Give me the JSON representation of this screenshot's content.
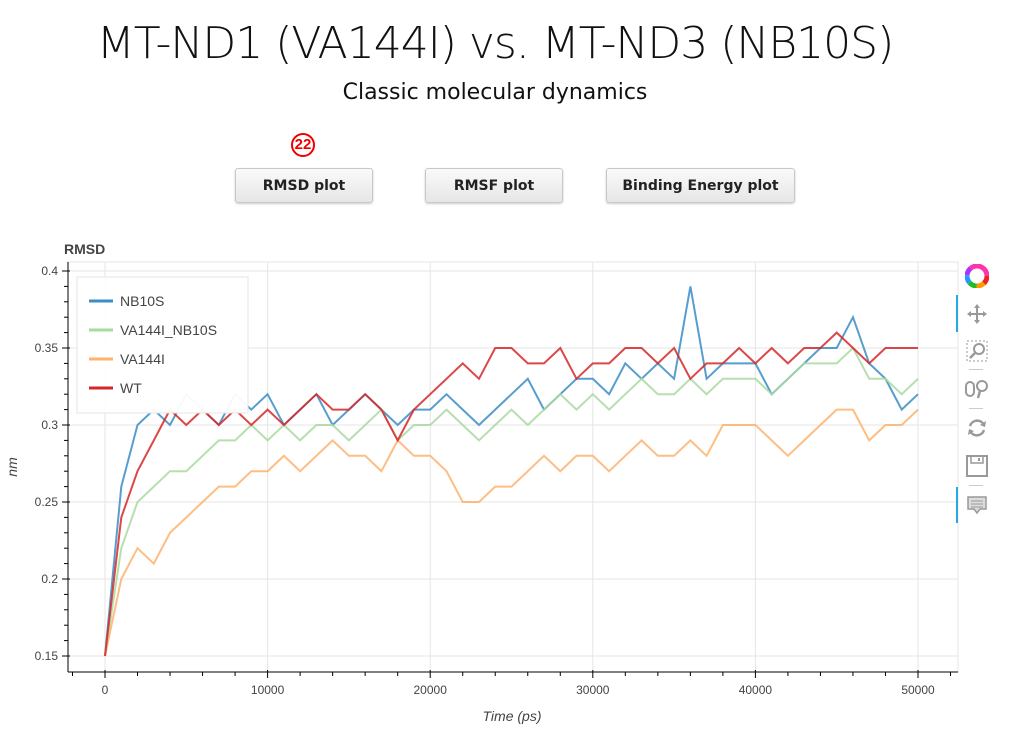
{
  "header": {
    "title": "MT-ND1 (VA144I) vs. MT-ND3 (NB10S)",
    "subtitle": "Classic molecular dynamics",
    "badge": "22"
  },
  "buttons": [
    {
      "label": "RMSD plot"
    },
    {
      "label": "RMSF plot"
    },
    {
      "label": "Binding Energy plot"
    }
  ],
  "toolbar": {
    "tools": [
      "bokeh-logo-icon",
      "pan-icon",
      "box-zoom-icon",
      "wheel-zoom-icon",
      "reset-icon",
      "save-icon",
      "hover-icon"
    ]
  },
  "chart_data": {
    "type": "line",
    "title": "RMSD",
    "xlabel": "Time (ps)",
    "ylabel": "nm",
    "xlim": [
      -2000,
      52500
    ],
    "ylim": [
      0.14,
      0.405
    ],
    "xticks": [
      0,
      10000,
      20000,
      30000,
      40000,
      50000
    ],
    "yticks": [
      0.15,
      0.2,
      0.25,
      0.3,
      0.35,
      0.4
    ],
    "grid": true,
    "legend_position": "top-left",
    "x": [
      0,
      1000,
      2000,
      3000,
      4000,
      5000,
      6000,
      7000,
      8000,
      9000,
      10000,
      11000,
      12000,
      13000,
      14000,
      15000,
      16000,
      17000,
      18000,
      19000,
      20000,
      21000,
      22000,
      23000,
      24000,
      25000,
      26000,
      27000,
      28000,
      29000,
      30000,
      31000,
      32000,
      33000,
      34000,
      35000,
      36000,
      37000,
      38000,
      39000,
      40000,
      41000,
      42000,
      43000,
      44000,
      45000,
      46000,
      47000,
      48000,
      49000,
      50000
    ],
    "series": [
      {
        "name": "NB10S",
        "color": "#3a8dc5",
        "values": [
          0.15,
          0.26,
          0.3,
          0.31,
          0.3,
          0.32,
          0.31,
          0.3,
          0.32,
          0.31,
          0.32,
          0.3,
          0.31,
          0.32,
          0.3,
          0.31,
          0.32,
          0.31,
          0.3,
          0.31,
          0.31,
          0.32,
          0.31,
          0.3,
          0.31,
          0.32,
          0.33,
          0.31,
          0.32,
          0.33,
          0.33,
          0.32,
          0.34,
          0.33,
          0.34,
          0.33,
          0.39,
          0.33,
          0.34,
          0.34,
          0.34,
          0.32,
          0.33,
          0.34,
          0.35,
          0.35,
          0.37,
          0.34,
          0.33,
          0.31,
          0.32
        ]
      },
      {
        "name": "VA144I_NB10S",
        "color": "#a8dba0",
        "values": [
          0.15,
          0.22,
          0.25,
          0.26,
          0.27,
          0.27,
          0.28,
          0.29,
          0.29,
          0.3,
          0.29,
          0.3,
          0.29,
          0.3,
          0.3,
          0.29,
          0.3,
          0.31,
          0.29,
          0.3,
          0.3,
          0.31,
          0.3,
          0.29,
          0.3,
          0.31,
          0.3,
          0.31,
          0.32,
          0.31,
          0.32,
          0.31,
          0.32,
          0.33,
          0.32,
          0.32,
          0.33,
          0.32,
          0.33,
          0.33,
          0.33,
          0.32,
          0.33,
          0.34,
          0.34,
          0.34,
          0.35,
          0.33,
          0.33,
          0.32,
          0.33
        ]
      },
      {
        "name": "VA144I",
        "color": "#fdb36e",
        "values": [
          0.15,
          0.2,
          0.22,
          0.21,
          0.23,
          0.24,
          0.25,
          0.26,
          0.26,
          0.27,
          0.27,
          0.28,
          0.27,
          0.28,
          0.29,
          0.28,
          0.28,
          0.27,
          0.29,
          0.28,
          0.28,
          0.27,
          0.25,
          0.25,
          0.26,
          0.26,
          0.27,
          0.28,
          0.27,
          0.28,
          0.28,
          0.27,
          0.28,
          0.29,
          0.28,
          0.28,
          0.29,
          0.28,
          0.3,
          0.3,
          0.3,
          0.29,
          0.28,
          0.29,
          0.3,
          0.31,
          0.31,
          0.29,
          0.3,
          0.3,
          0.31
        ]
      },
      {
        "name": "WT",
        "color": "#d62728",
        "values": [
          0.15,
          0.24,
          0.27,
          0.29,
          0.31,
          0.3,
          0.31,
          0.3,
          0.31,
          0.3,
          0.31,
          0.3,
          0.31,
          0.32,
          0.31,
          0.31,
          0.32,
          0.31,
          0.29,
          0.31,
          0.32,
          0.33,
          0.34,
          0.33,
          0.35,
          0.35,
          0.34,
          0.34,
          0.35,
          0.33,
          0.34,
          0.34,
          0.35,
          0.35,
          0.34,
          0.35,
          0.33,
          0.34,
          0.34,
          0.35,
          0.34,
          0.35,
          0.34,
          0.35,
          0.35,
          0.36,
          0.35,
          0.34,
          0.35,
          0.35,
          0.35
        ]
      }
    ]
  }
}
